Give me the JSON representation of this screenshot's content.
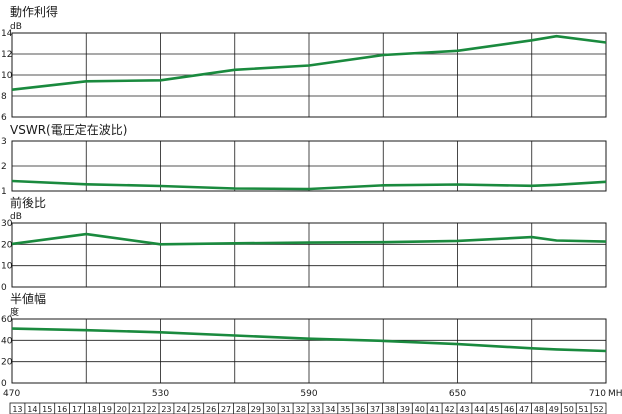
{
  "chart_data": [
    {
      "type": "line",
      "title": "動作利得",
      "ylabel": "dB",
      "ylim": [
        6,
        14
      ],
      "yticks": [
        6,
        8,
        10,
        12,
        14
      ],
      "x": [
        470,
        500,
        530,
        560,
        590,
        620,
        650,
        680,
        690,
        710
      ],
      "series": [
        {
          "values": [
            8.6,
            9.4,
            9.5,
            10.5,
            10.9,
            11.9,
            12.3,
            13.3,
            13.7,
            13.1
          ]
        }
      ],
      "grid": true
    },
    {
      "type": "line",
      "title": "VSWR(電圧定在波比)",
      "ylabel": "",
      "ylim": [
        1,
        3
      ],
      "yticks": [
        1,
        2,
        3
      ],
      "x": [
        470,
        500,
        530,
        560,
        590,
        620,
        650,
        680,
        690,
        710
      ],
      "series": [
        {
          "values": [
            1.4,
            1.27,
            1.2,
            1.1,
            1.08,
            1.23,
            1.26,
            1.21,
            1.25,
            1.37
          ]
        }
      ],
      "grid": true
    },
    {
      "type": "line",
      "title": "前後比",
      "ylabel": "dB",
      "ylim": [
        0,
        30
      ],
      "yticks": [
        0,
        10,
        20,
        30
      ],
      "x": [
        470,
        500,
        530,
        560,
        590,
        620,
        650,
        680,
        690,
        710
      ],
      "series": [
        {
          "values": [
            20.2,
            24.8,
            20.0,
            20.5,
            20.8,
            21.0,
            21.6,
            23.4,
            21.8,
            21.3
          ]
        }
      ],
      "grid": true
    },
    {
      "type": "line",
      "title": "半値幅",
      "ylabel": "度",
      "ylim": [
        0,
        60
      ],
      "yticks": [
        0,
        20,
        40,
        60
      ],
      "x": [
        470,
        500,
        530,
        560,
        590,
        620,
        650,
        680,
        690,
        710
      ],
      "series": [
        {
          "values": [
            51,
            49.5,
            47.5,
            44.5,
            41.5,
            39.5,
            36.5,
            32.5,
            31.5,
            30
          ]
        }
      ],
      "grid": true
    }
  ],
  "x_axis": {
    "range": [
      470,
      710
    ],
    "ticks": [
      "470",
      "530",
      "590",
      "650",
      "710"
    ],
    "unit": "MHz",
    "grid_step": 30
  },
  "channels": [
    "13",
    "14",
    "15",
    "16",
    "17",
    "18",
    "19",
    "20",
    "21",
    "22",
    "23",
    "24",
    "25",
    "26",
    "27",
    "28",
    "29",
    "30",
    "31",
    "32",
    "33",
    "34",
    "35",
    "36",
    "37",
    "38",
    "39",
    "40",
    "41",
    "42",
    "43",
    "44",
    "45",
    "46",
    "47",
    "48",
    "49",
    "50",
    "51",
    "52"
  ],
  "colors": {
    "line": "#1a8a3e",
    "grid": "#1a1a1a",
    "text": "#1a1a1a"
  }
}
